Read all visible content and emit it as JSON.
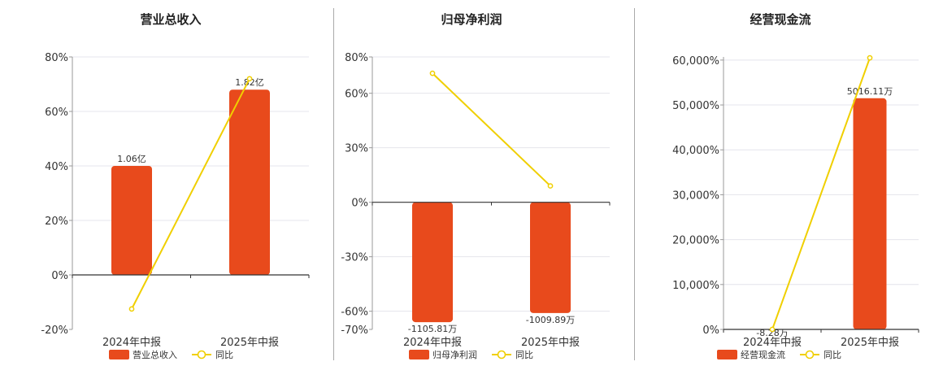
{
  "colors": {
    "bar": "#E84A1C",
    "line": "#F0CF00",
    "grid": "#E4E4EC",
    "axis": "#333333",
    "divider": "#AAAAAA"
  },
  "chart_data": [
    {
      "type": "bar",
      "title": "营业总收入",
      "categories": [
        "2024年中报",
        "2025年中报"
      ],
      "series": [
        {
          "name": "营业总收入",
          "type": "bar",
          "values": [
            40,
            68
          ],
          "labels": [
            "1.06亿",
            "1.82亿"
          ]
        },
        {
          "name": "同比",
          "type": "line",
          "values": [
            -12.5,
            72
          ]
        }
      ],
      "yticks": [
        80,
        60,
        40,
        20,
        0,
        -20
      ],
      "ytick_labels": [
        "80%",
        "60%",
        "40%",
        "20%",
        "0%",
        "-20%"
      ],
      "ylim": [
        -20,
        80
      ],
      "grid": true,
      "legend": "bottom"
    },
    {
      "type": "bar",
      "title": "归母净利润",
      "categories": [
        "2024年中报",
        "2025年中报"
      ],
      "series": [
        {
          "name": "归母净利润",
          "type": "bar",
          "values": [
            -66,
            -61
          ],
          "labels": [
            "-1105.81万",
            "-1009.89万"
          ]
        },
        {
          "name": "同比",
          "type": "line",
          "values": [
            71,
            9
          ]
        }
      ],
      "yticks": [
        80,
        60,
        30,
        0,
        -30,
        -60,
        -70
      ],
      "ytick_labels": [
        "80%",
        "60%",
        "30%",
        "0%",
        "-30%",
        "-60%",
        "-70%"
      ],
      "ylim": [
        -70,
        80
      ],
      "grid": true,
      "legend": "bottom"
    },
    {
      "type": "bar",
      "title": "经营现金流",
      "categories": [
        "2024年中报",
        "2025年中报"
      ],
      "series": [
        {
          "name": "经营现金流",
          "type": "bar",
          "values": [
            0,
            51500
          ],
          "labels": [
            "-8.28万",
            "5016.11万"
          ]
        },
        {
          "name": "同比",
          "type": "line",
          "values": [
            0,
            60500
          ]
        }
      ],
      "yticks": [
        60000,
        50000,
        40000,
        30000,
        20000,
        10000,
        0
      ],
      "ytick_labels": [
        "60,000%",
        "50,000%",
        "40,000%",
        "30,000%",
        "20,000%",
        "10,000%",
        "0%"
      ],
      "ylim": [
        0,
        60700
      ],
      "grid": true,
      "legend": "bottom"
    }
  ]
}
